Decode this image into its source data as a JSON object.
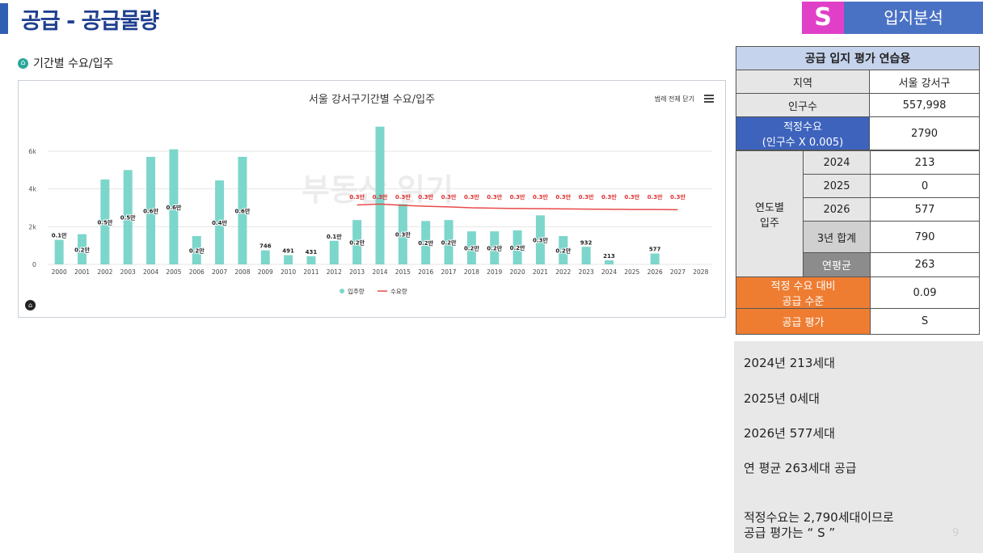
{
  "header": {
    "title": "공급 - 공급물량",
    "badge": "S",
    "badge_label": "입지분석"
  },
  "section": {
    "title": "기간별 수요/입주"
  },
  "chart_data": {
    "type": "bar",
    "title": "서울 강서구기간별 수요/입주",
    "legend_toggle": "범례 전체 닫기",
    "categories": [
      "2000",
      "2001",
      "2002",
      "2003",
      "2004",
      "2005",
      "2006",
      "2007",
      "2008",
      "2009",
      "2010",
      "2011",
      "2012",
      "2013",
      "2014",
      "2015",
      "2016",
      "2017",
      "2018",
      "2019",
      "2020",
      "2021",
      "2022",
      "2023",
      "2024",
      "2025",
      "2026",
      "2027",
      "2028"
    ],
    "y_ticks": [
      "0",
      "2k",
      "4k",
      "6k"
    ],
    "ylim": [
      0,
      7800
    ],
    "series": [
      {
        "name": "입주량",
        "type": "bar",
        "color": "#7dd6cb",
        "values": [
          1300,
          1600,
          4500,
          5000,
          5700,
          6100,
          1500,
          4450,
          5700,
          746,
          491,
          431,
          1250,
          2350,
          7300,
          3200,
          2300,
          2350,
          1750,
          1750,
          1800,
          2600,
          1500,
          932,
          213,
          0,
          577,
          null,
          null
        ],
        "labels": [
          "0.1만",
          "0.2만",
          "0.5만",
          "0.5만",
          "0.6만",
          "0.6만",
          "0.2만",
          "0.4만",
          "0.6만",
          "746",
          "491",
          "431",
          "0.1만",
          "0.2만",
          "",
          "0.3만",
          "0.2만",
          "0.2만",
          "0.2만",
          "0.2만",
          "0.2만",
          "0.3만",
          "0.2만",
          "932",
          "213",
          "",
          "577",
          "",
          ""
        ]
      },
      {
        "name": "수요량",
        "type": "line",
        "color": "#e84a4a",
        "values": [
          null,
          null,
          null,
          null,
          null,
          null,
          null,
          null,
          null,
          null,
          null,
          null,
          null,
          3150,
          3200,
          3130,
          3080,
          3050,
          3000,
          2980,
          2960,
          2950,
          2940,
          2930,
          2920,
          2910,
          2910,
          2900,
          null
        ],
        "labels": [
          "",
          "",
          "",
          "",
          "",
          "",
          "",
          "",
          "",
          "",
          "",
          "",
          "",
          "0.3만",
          "0.3만",
          "0.3만",
          "0.3만",
          "0.3만",
          "0.3만",
          "0.3만",
          "0.3만",
          "0.3만",
          "0.3만",
          "0.3만",
          "0.3만",
          "0.3만",
          "0.3만",
          "0.3만",
          ""
        ]
      }
    ]
  },
  "table": {
    "header": "공급 입지 평가 연습용",
    "region_label": "지역",
    "region_value": "서울 강서구",
    "pop_label": "인구수",
    "pop_value": "557,998",
    "demand_label": "적정수요\n(인구수 X 0.005)",
    "demand_value": "2790",
    "yearly_label": "연도별\n입주",
    "y2024_label": "2024",
    "y2024_value": "213",
    "y2025_label": "2025",
    "y2025_value": "0",
    "y2026_label": "2026",
    "y2026_value": "577",
    "sum_label": "3년 합계",
    "sum_value": "790",
    "avg_label": "연평균",
    "avg_value": "263",
    "ratio_label": "적정 수요 대비\n공급 수준",
    "ratio_value": "0.09",
    "eval_label": "공급 평가",
    "eval_value": "S"
  },
  "notes": {
    "n1": "2024년 213세대",
    "n2": "2025년 0세대",
    "n3": "2026년 577세대",
    "n4": "연 평균 263세대 공급",
    "n5": "적정수요는 2,790세대이므로",
    "n6": "공급 평가는 “ S ”"
  },
  "page_number": "9",
  "watermark": "부동산 읽기"
}
